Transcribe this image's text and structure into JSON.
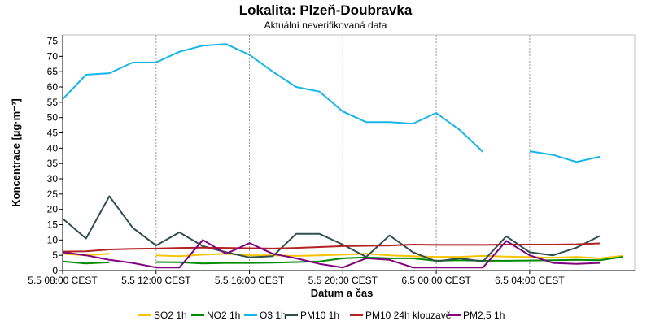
{
  "chart_data": {
    "type": "line",
    "title": "Lokalita: Plzeň-Doubravka",
    "subtitle": "Aktuální neverifikovaná data",
    "xlabel": "Datum a čas",
    "ylabel": "Koncentrace [µg·m⁻³]",
    "ylim": [
      0,
      77
    ],
    "yticks": [
      0,
      5,
      10,
      15,
      20,
      25,
      30,
      35,
      40,
      45,
      50,
      55,
      60,
      65,
      70,
      75
    ],
    "x_start_hour": 8,
    "x_end_hour": 32.5,
    "xticks": [
      {
        "hour": 8,
        "label": "5.5 08:00 CEST"
      },
      {
        "hour": 12,
        "label": "5.5 12:00 CEST"
      },
      {
        "hour": 16,
        "label": "5.5 16:00 CEST"
      },
      {
        "hour": 20,
        "label": "5.5 20:00 CEST"
      },
      {
        "hour": 24,
        "label": "6.5 00:00 CEST"
      },
      {
        "hour": 28,
        "label": "6.5 04:00 CEST"
      }
    ],
    "grid": "vertical-dashed",
    "legend_position": "bottom",
    "series": [
      {
        "name": "SO2 1h",
        "color": "#f5c400",
        "points": [
          [
            8,
            5.5
          ],
          [
            9,
            5
          ],
          [
            10,
            5.5
          ],
          null,
          [
            12,
            5
          ],
          [
            13,
            4.7
          ],
          [
            14,
            5.2
          ],
          [
            15,
            5.5
          ],
          [
            16,
            5
          ],
          [
            17,
            5
          ],
          [
            18,
            4.8
          ],
          [
            19,
            5
          ],
          [
            20,
            5.2
          ],
          [
            21,
            5.5
          ],
          [
            22,
            5
          ],
          [
            23,
            4.7
          ],
          [
            24,
            4.5
          ],
          [
            25,
            4.5
          ],
          [
            26,
            4.8
          ],
          [
            27,
            4.6
          ],
          [
            28,
            4.4
          ],
          [
            29,
            4.2
          ],
          [
            30,
            4.5
          ],
          [
            31,
            4
          ],
          [
            32,
            4.8
          ]
        ]
      },
      {
        "name": "NO2 1h",
        "color": "#008a00",
        "points": [
          [
            8,
            3
          ],
          [
            9,
            2.3
          ],
          [
            10,
            2.7
          ],
          null,
          [
            12,
            2.8
          ],
          [
            13,
            2.7
          ],
          [
            14,
            2.3
          ],
          [
            15,
            2.5
          ],
          [
            16,
            2.5
          ],
          [
            17,
            2.6
          ],
          [
            18,
            2.8
          ],
          [
            19,
            3
          ],
          [
            20,
            4
          ],
          [
            21,
            4.3
          ],
          [
            22,
            4
          ],
          [
            23,
            4
          ],
          [
            24,
            3.2
          ],
          [
            25,
            3.4
          ],
          [
            26,
            3.2
          ],
          [
            27,
            3.2
          ],
          [
            28,
            3.3
          ],
          [
            29,
            3.4
          ],
          [
            30,
            3.5
          ],
          [
            31,
            3.4
          ],
          [
            32,
            4.5
          ]
        ]
      },
      {
        "name": "O3 1h",
        "color": "#13b5ea",
        "points": [
          [
            8,
            56
          ],
          [
            9,
            64
          ],
          [
            10,
            64.5
          ],
          [
            11,
            68
          ],
          [
            12,
            68
          ],
          [
            13,
            71.5
          ],
          [
            14,
            73.5
          ],
          [
            15,
            74
          ],
          [
            16,
            70.5
          ],
          [
            17,
            65
          ],
          [
            18,
            60
          ],
          [
            19,
            58.5
          ],
          [
            20,
            52
          ],
          [
            21,
            48.5
          ],
          [
            22,
            48.5
          ],
          [
            23,
            48
          ],
          [
            24,
            51.5
          ],
          [
            25,
            46
          ],
          [
            26,
            38.8
          ],
          null,
          [
            28,
            39
          ],
          [
            29,
            37.8
          ],
          [
            30,
            35.5
          ],
          [
            31,
            37.2
          ]
        ]
      },
      {
        "name": "PM10 1h",
        "color": "#2f4f4f",
        "points": [
          [
            8,
            17
          ],
          [
            9,
            10.5
          ],
          [
            10,
            24.3
          ],
          [
            11,
            14
          ],
          [
            12,
            8.2
          ],
          [
            13,
            12.5
          ],
          [
            14,
            8
          ],
          [
            15,
            6
          ],
          [
            16,
            4.3
          ],
          [
            17,
            4.7
          ],
          [
            18,
            12
          ],
          [
            19,
            12
          ],
          [
            20,
            8.5
          ],
          [
            21,
            4.5
          ],
          [
            22,
            11.5
          ],
          [
            23,
            6
          ],
          [
            24,
            3
          ],
          [
            25,
            4
          ],
          [
            26,
            3
          ],
          [
            27,
            11.2
          ],
          [
            28,
            6
          ],
          [
            29,
            5
          ],
          [
            30,
            7.5
          ],
          [
            31,
            11.3
          ]
        ]
      },
      {
        "name": "PM10 24h klouzavě",
        "color": "#b22222",
        "points": [
          [
            8,
            6.2
          ],
          [
            9,
            6.3
          ],
          [
            10,
            6.9
          ],
          [
            11,
            7.1
          ],
          [
            12,
            7.2
          ],
          [
            13,
            7.4
          ],
          [
            14,
            7.5
          ],
          [
            15,
            7.4
          ],
          [
            16,
            7.3
          ],
          [
            17,
            7.2
          ],
          [
            18,
            7.4
          ],
          [
            19,
            7.7
          ],
          [
            20,
            8
          ],
          [
            21,
            8.1
          ],
          [
            22,
            8.2
          ],
          [
            23,
            8.5
          ],
          [
            24,
            8.4
          ],
          [
            25,
            8.4
          ],
          [
            26,
            8.4
          ],
          [
            27,
            8.5
          ],
          [
            28,
            8.5
          ],
          [
            29,
            8.5
          ],
          [
            30,
            8.6
          ],
          [
            31,
            8.9
          ]
        ]
      },
      {
        "name": "PM2,5 1h",
        "color": "#800080",
        "points": [
          [
            8,
            6
          ],
          [
            9,
            5
          ],
          [
            10,
            3.5
          ],
          [
            11,
            2.5
          ],
          [
            12,
            1
          ],
          [
            13,
            1
          ],
          [
            14,
            10
          ],
          [
            15,
            5.5
          ],
          [
            16,
            9
          ],
          [
            17,
            5.5
          ],
          [
            18,
            4
          ],
          [
            19,
            2.2
          ],
          [
            20,
            1
          ],
          [
            21,
            4
          ],
          [
            22,
            3.5
          ],
          [
            23,
            1
          ],
          [
            24,
            1
          ],
          [
            25,
            1
          ],
          [
            26,
            1
          ],
          [
            27,
            9.7
          ],
          [
            28,
            5
          ],
          [
            29,
            2.5
          ],
          [
            30,
            2.2
          ],
          [
            31,
            2.5
          ]
        ]
      }
    ]
  }
}
